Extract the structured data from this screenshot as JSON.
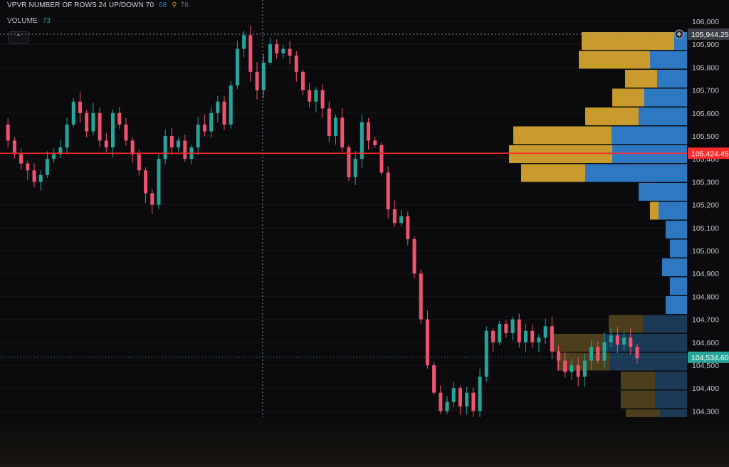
{
  "legend": {
    "vpvr_label": "VPVR NUMBER OF ROWS 24 UP/DOWN 70",
    "vpvr_up": "68",
    "vpvr_marker": "⚲",
    "vpvr_down": "76",
    "volume_label": "VOLUME",
    "volume_value": "73"
  },
  "colors": {
    "background": "#0b0b0d",
    "up": "#26a69a",
    "down": "#ef5370",
    "vp_up": "#2e78c2",
    "vp_down": "#c89b2c",
    "price_line": "#ff2a2a",
    "last_price": "#26a69a"
  },
  "chart_data": {
    "type": "candlestick",
    "ylim": [
      104260,
      106040
    ],
    "y_ticks": [
      "106,000",
      "105,900",
      "105,800",
      "105,700",
      "105,600",
      "105,500",
      "105,400",
      "105,300",
      "105,200",
      "105,100",
      "105,000",
      "104,900",
      "104,800",
      "104,700",
      "104,600",
      "104,500",
      "104,400",
      "104,300"
    ],
    "crosshair_price": "105,944.25",
    "highlight_price": "105,424.45",
    "last_price": "104,534.60",
    "close_path": [
      105550,
      105480,
      105420,
      105380,
      105350,
      105300,
      105330,
      105400,
      105420,
      105450,
      105550,
      105650,
      105600,
      105520,
      105600,
      105480,
      105450,
      105600,
      105550,
      105480,
      105420,
      105350,
      105250,
      105200,
      105400,
      105500,
      105450,
      105480,
      105400,
      105450,
      105550,
      105520,
      105600,
      105650,
      105550,
      105720,
      105880,
      105940,
      105780,
      105700,
      105820,
      105900,
      105860,
      105880,
      105850,
      105780,
      105700,
      105650,
      105700,
      105620,
      105500,
      105580,
      105450,
      105320,
      105400,
      105560,
      105480,
      105460,
      105340,
      105180,
      105120,
      105150,
      105050,
      104900,
      104700,
      104500,
      104380,
      104300,
      104340,
      104400,
      104320,
      104380,
      104300,
      104450,
      104650,
      104600,
      104680,
      104640,
      104700,
      104600,
      104650,
      104600,
      104620,
      104670,
      104560,
      104520,
      104470,
      104500,
      104450,
      104520,
      104580,
      104520,
      104600,
      104630,
      104590,
      104620,
      104580,
      104530
    ],
    "volume_profile": [
      {
        "price": 105900,
        "up": 130,
        "down": 18
      },
      {
        "price": 105800,
        "up": 100,
        "down": 52
      },
      {
        "price": 105700,
        "up": 45,
        "down": 42
      },
      {
        "price": 105600,
        "up": 45,
        "down": 60
      },
      {
        "price": 105500,
        "up": 75,
        "down": 68
      },
      {
        "price": 105450,
        "up": 138,
        "down": 106
      },
      {
        "price": 105400,
        "up": 145,
        "down": 105
      },
      {
        "price": 105300,
        "up": 90,
        "down": 143
      },
      {
        "price": 105200,
        "up": 0,
        "down": 68
      },
      {
        "price": 105150,
        "up": 12,
        "down": 40
      },
      {
        "price": 105100,
        "up": 0,
        "down": 30
      },
      {
        "price": 105000,
        "up": 0,
        "down": 24
      },
      {
        "price": 104900,
        "up": 0,
        "down": 35
      },
      {
        "price": 104850,
        "up": 0,
        "down": 24
      },
      {
        "price": 104800,
        "up": 0,
        "down": 30
      },
      {
        "price": 104700,
        "up": 48,
        "down": 62
      },
      {
        "price": 104600,
        "up": 72,
        "down": 118
      },
      {
        "price": 104550,
        "up": 75,
        "down": 108
      },
      {
        "price": 104500,
        "up": 48,
        "down": 45
      },
      {
        "price": 104400,
        "up": 48,
        "down": 45
      },
      {
        "price": 104350,
        "up": 48,
        "down": 38
      },
      {
        "price": 104300,
        "up": 48,
        "down": 30
      }
    ]
  }
}
